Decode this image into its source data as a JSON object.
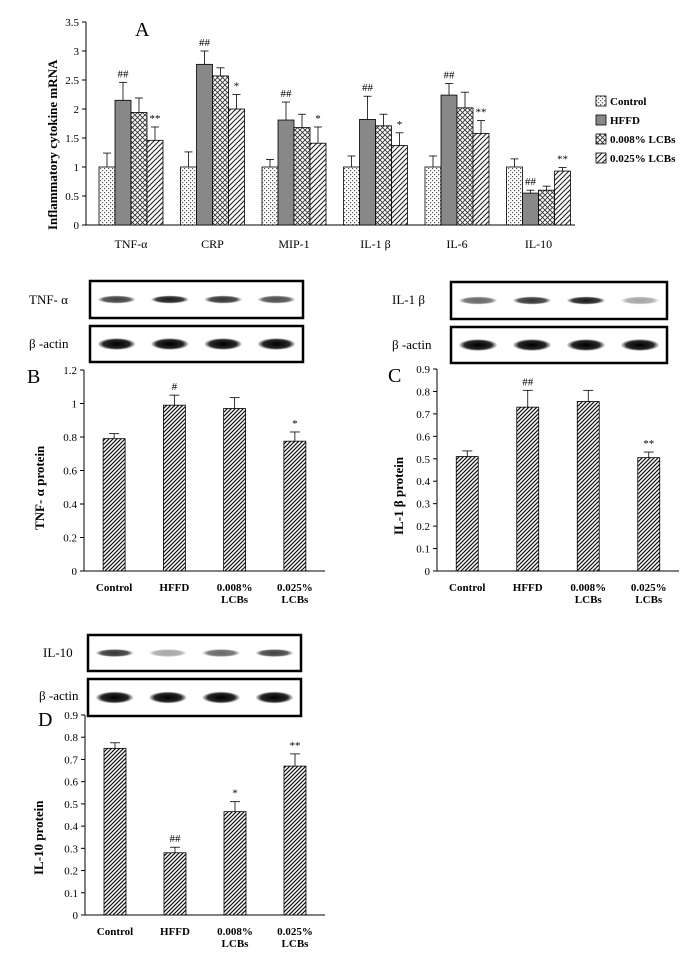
{
  "chart_data": [
    {
      "panel": "A",
      "type": "bar",
      "ylabel": "Inflammatory cytokine mRNA",
      "ylim": [
        0,
        3.5
      ],
      "yticks": [
        "0",
        "0.5",
        "1",
        "1.5",
        "2",
        "2.5",
        "3",
        "3.5"
      ],
      "categories": [
        "TNF-α",
        "CRP",
        "MIP-1",
        "IL-1 β",
        "IL-6",
        "IL-10"
      ],
      "legend_position": "right",
      "series": [
        {
          "name": "Control",
          "pattern": "dots",
          "values": [
            1.0,
            1.0,
            1.0,
            1.0,
            1.0,
            1.0
          ],
          "errors": [
            0.24,
            0.26,
            0.13,
            0.19,
            0.19,
            0.14
          ],
          "marks": [
            "",
            "",
            "",
            "",
            "",
            ""
          ]
        },
        {
          "name": "HFFD",
          "pattern": "solid",
          "values": [
            2.15,
            2.77,
            1.81,
            1.82,
            2.24,
            0.55
          ],
          "errors": [
            0.31,
            0.23,
            0.31,
            0.4,
            0.2,
            0.05
          ],
          "marks": [
            "##",
            "##",
            "##",
            "##",
            "##",
            "##"
          ]
        },
        {
          "name": "0.008% LCBs",
          "pattern": "cross",
          "values": [
            1.94,
            2.57,
            1.68,
            1.71,
            2.02,
            0.6
          ],
          "errors": [
            0.25,
            0.14,
            0.23,
            0.2,
            0.27,
            0.07
          ],
          "marks": [
            "",
            "",
            "",
            "",
            "",
            ""
          ]
        },
        {
          "name": "0.025% LCBs",
          "pattern": "hatch",
          "values": [
            1.46,
            2.0,
            1.41,
            1.37,
            1.58,
            0.93
          ],
          "errors": [
            0.23,
            0.25,
            0.28,
            0.22,
            0.22,
            0.06
          ],
          "marks": [
            "**",
            "*",
            "*",
            "*",
            "**",
            "**"
          ]
        }
      ]
    },
    {
      "panel": "B",
      "type": "bar",
      "ylabel": "TNF- α  protein",
      "ylim": [
        0,
        1.2
      ],
      "yticks": [
        "0",
        "0.2",
        "0.4",
        "0.6",
        "0.8",
        "1",
        "1.2"
      ],
      "categories": [
        "Control",
        "HFFD",
        "0.008%\nLCBs",
        "0.025%\nLCBs"
      ],
      "values": [
        0.79,
        0.99,
        0.97,
        0.775
      ],
      "errors": [
        0.03,
        0.06,
        0.065,
        0.055
      ],
      "marks": [
        "",
        "#",
        "",
        "*"
      ],
      "blot_labels": [
        "TNF- α",
        "β -actin"
      ]
    },
    {
      "panel": "C",
      "type": "bar",
      "ylabel": "IL-1 β protein",
      "ylim": [
        0,
        0.9
      ],
      "yticks": [
        "0",
        "0.1",
        "0.2",
        "0.3",
        "0.4",
        "0.5",
        "0.6",
        "0.7",
        "0.8",
        "0.9"
      ],
      "categories": [
        "Control",
        "HFFD",
        "0.008%\nLCBs",
        "0.025%\nLCBs"
      ],
      "values": [
        0.51,
        0.73,
        0.755,
        0.505
      ],
      "errors": [
        0.025,
        0.075,
        0.05,
        0.025
      ],
      "marks": [
        "",
        "##",
        "",
        "**"
      ],
      "blot_labels": [
        "IL-1 β",
        "β -actin"
      ]
    },
    {
      "panel": "D",
      "type": "bar",
      "ylabel": "IL-10 protein",
      "ylim": [
        0,
        0.9
      ],
      "yticks": [
        "0",
        "0.1",
        "0.2",
        "0.3",
        "0.4",
        "0.5",
        "0.6",
        "0.7",
        "0.8",
        "0.9"
      ],
      "categories": [
        "Control",
        "HFFD",
        "0.008%\nLCBs",
        "0.025%\nLCBs"
      ],
      "values": [
        0.75,
        0.28,
        0.465,
        0.67
      ],
      "errors": [
        0.025,
        0.025,
        0.045,
        0.055
      ],
      "marks": [
        "",
        "##",
        "*",
        "**"
      ],
      "blot_labels": [
        "IL-10",
        "β -actin"
      ]
    }
  ],
  "blots": {
    "target_intensity_B": [
      0.75,
      0.9,
      0.8,
      0.7
    ],
    "target_intensity_C": [
      0.6,
      0.8,
      0.9,
      0.35
    ],
    "target_intensity_D": [
      0.8,
      0.35,
      0.6,
      0.75
    ],
    "actin_intensity": [
      1,
      1,
      1,
      1
    ]
  }
}
